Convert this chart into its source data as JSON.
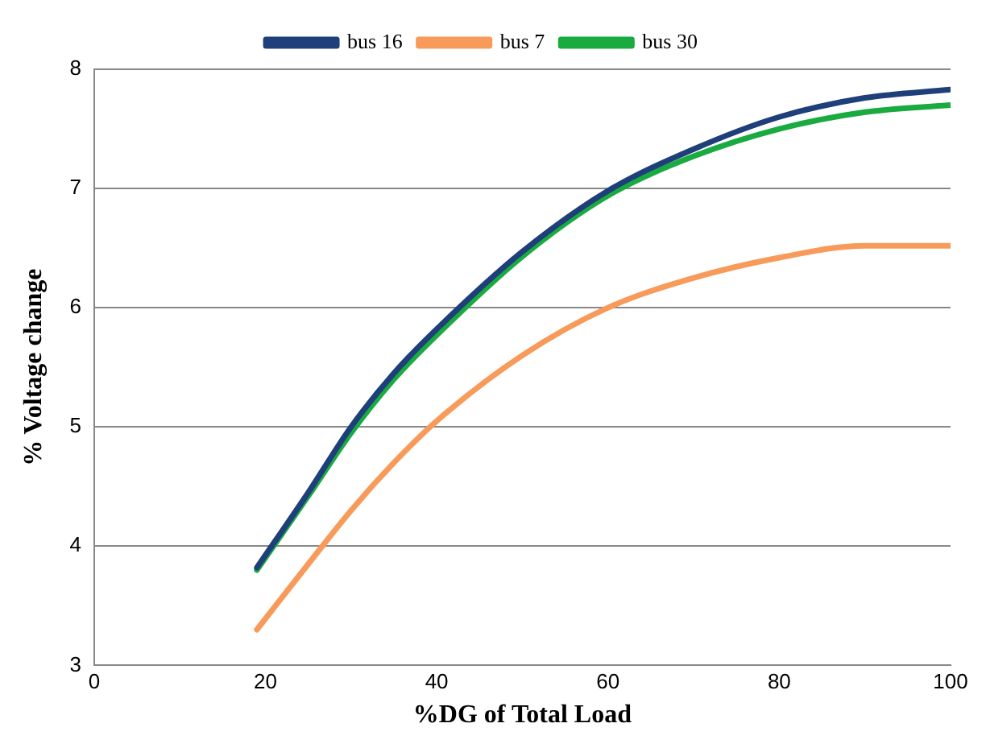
{
  "chart_data": {
    "type": "line",
    "xlabel": "%DG of Total Load",
    "ylabel": "% Voltage change",
    "xlim": [
      0,
      100
    ],
    "xticks": [
      0,
      20,
      40,
      60,
      80,
      100
    ],
    "ylim": [
      3,
      8
    ],
    "yticks": [
      3,
      4,
      5,
      6,
      7,
      8
    ],
    "grid": "y",
    "legend": "top",
    "marker": "none",
    "line_style": "solid",
    "series": [
      {
        "name": "bus 16",
        "color": "#1f3f7a",
        "x": [
          19,
          25,
          30,
          35,
          40,
          50,
          60,
          70,
          80,
          90,
          100
        ],
        "values": [
          3.82,
          4.45,
          5.0,
          5.45,
          5.82,
          6.47,
          6.98,
          7.33,
          7.6,
          7.76,
          7.83
        ]
      },
      {
        "name": "bus 7",
        "color": "#f79a5a",
        "x": [
          19,
          25,
          30,
          35,
          40,
          50,
          60,
          70,
          80,
          90,
          100
        ],
        "values": [
          3.3,
          3.85,
          4.3,
          4.7,
          5.05,
          5.6,
          6.0,
          6.25,
          6.42,
          6.52,
          6.52
        ]
      },
      {
        "name": "bus 30",
        "color": "#1aab40",
        "x": [
          19,
          25,
          30,
          35,
          40,
          50,
          60,
          70,
          80,
          90,
          100
        ],
        "values": [
          3.8,
          4.42,
          4.95,
          5.4,
          5.77,
          6.43,
          6.94,
          7.27,
          7.5,
          7.64,
          7.7
        ]
      }
    ]
  }
}
